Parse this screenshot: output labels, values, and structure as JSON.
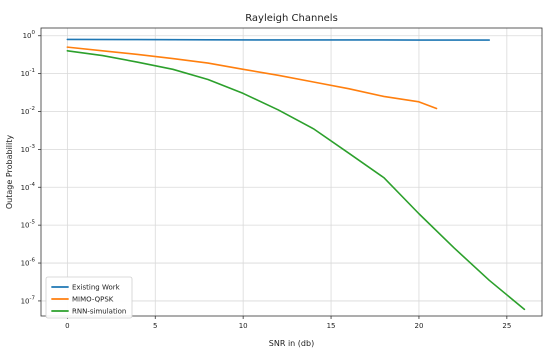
{
  "chart_data": {
    "type": "line",
    "title": "Rayleigh Channels",
    "xlabel": "SNR in (db)",
    "ylabel": "Outage Probability",
    "xlim": [
      -1.5,
      27.0
    ],
    "ylim": [
      4e-08,
      1.6
    ],
    "xscale": "linear",
    "yscale": "log",
    "grid": true,
    "legend_position": "lower-left",
    "xticks": [
      0,
      5,
      10,
      15,
      20,
      25
    ],
    "xtick_labels": [
      "0",
      "5",
      "10",
      "15",
      "20",
      "25"
    ],
    "yticks": [
      1e-07,
      1e-06,
      1e-05,
      0.0001,
      0.001,
      0.01,
      0.1,
      1
    ],
    "ytick_labels": [
      {
        "base": "10",
        "exp": "-7"
      },
      {
        "base": "10",
        "exp": "-6"
      },
      {
        "base": "10",
        "exp": "-5"
      },
      {
        "base": "10",
        "exp": "-4"
      },
      {
        "base": "10",
        "exp": "-3"
      },
      {
        "base": "10",
        "exp": "-2"
      },
      {
        "base": "10",
        "exp": "-1"
      },
      {
        "base": "10",
        "exp": "0"
      }
    ],
    "series": [
      {
        "name": "Existing Work",
        "color": "#1f77b4",
        "x": [
          0,
          4,
          8,
          12,
          16,
          20,
          24
        ],
        "y": [
          0.8,
          0.79,
          0.78,
          0.775,
          0.775,
          0.77,
          0.77
        ]
      },
      {
        "name": "MIMO-QPSK",
        "color": "#ff7f0e",
        "x": [
          0,
          2,
          4,
          6,
          8,
          10,
          12,
          14,
          16,
          18,
          20,
          21
        ],
        "y": [
          0.5,
          0.4,
          0.32,
          0.25,
          0.19,
          0.13,
          0.09,
          0.06,
          0.04,
          0.025,
          0.018,
          0.012
        ]
      },
      {
        "name": "RNN-simulation",
        "color": "#2ca02c",
        "x": [
          0,
          2,
          4,
          6,
          8,
          10,
          12,
          14,
          16,
          18,
          20,
          22,
          24,
          26
        ],
        "y": [
          0.4,
          0.3,
          0.2,
          0.13,
          0.07,
          0.03,
          0.011,
          0.0035,
          0.0008,
          0.00018,
          2e-05,
          2.5e-06,
          3.5e-07,
          6e-08
        ]
      }
    ]
  }
}
